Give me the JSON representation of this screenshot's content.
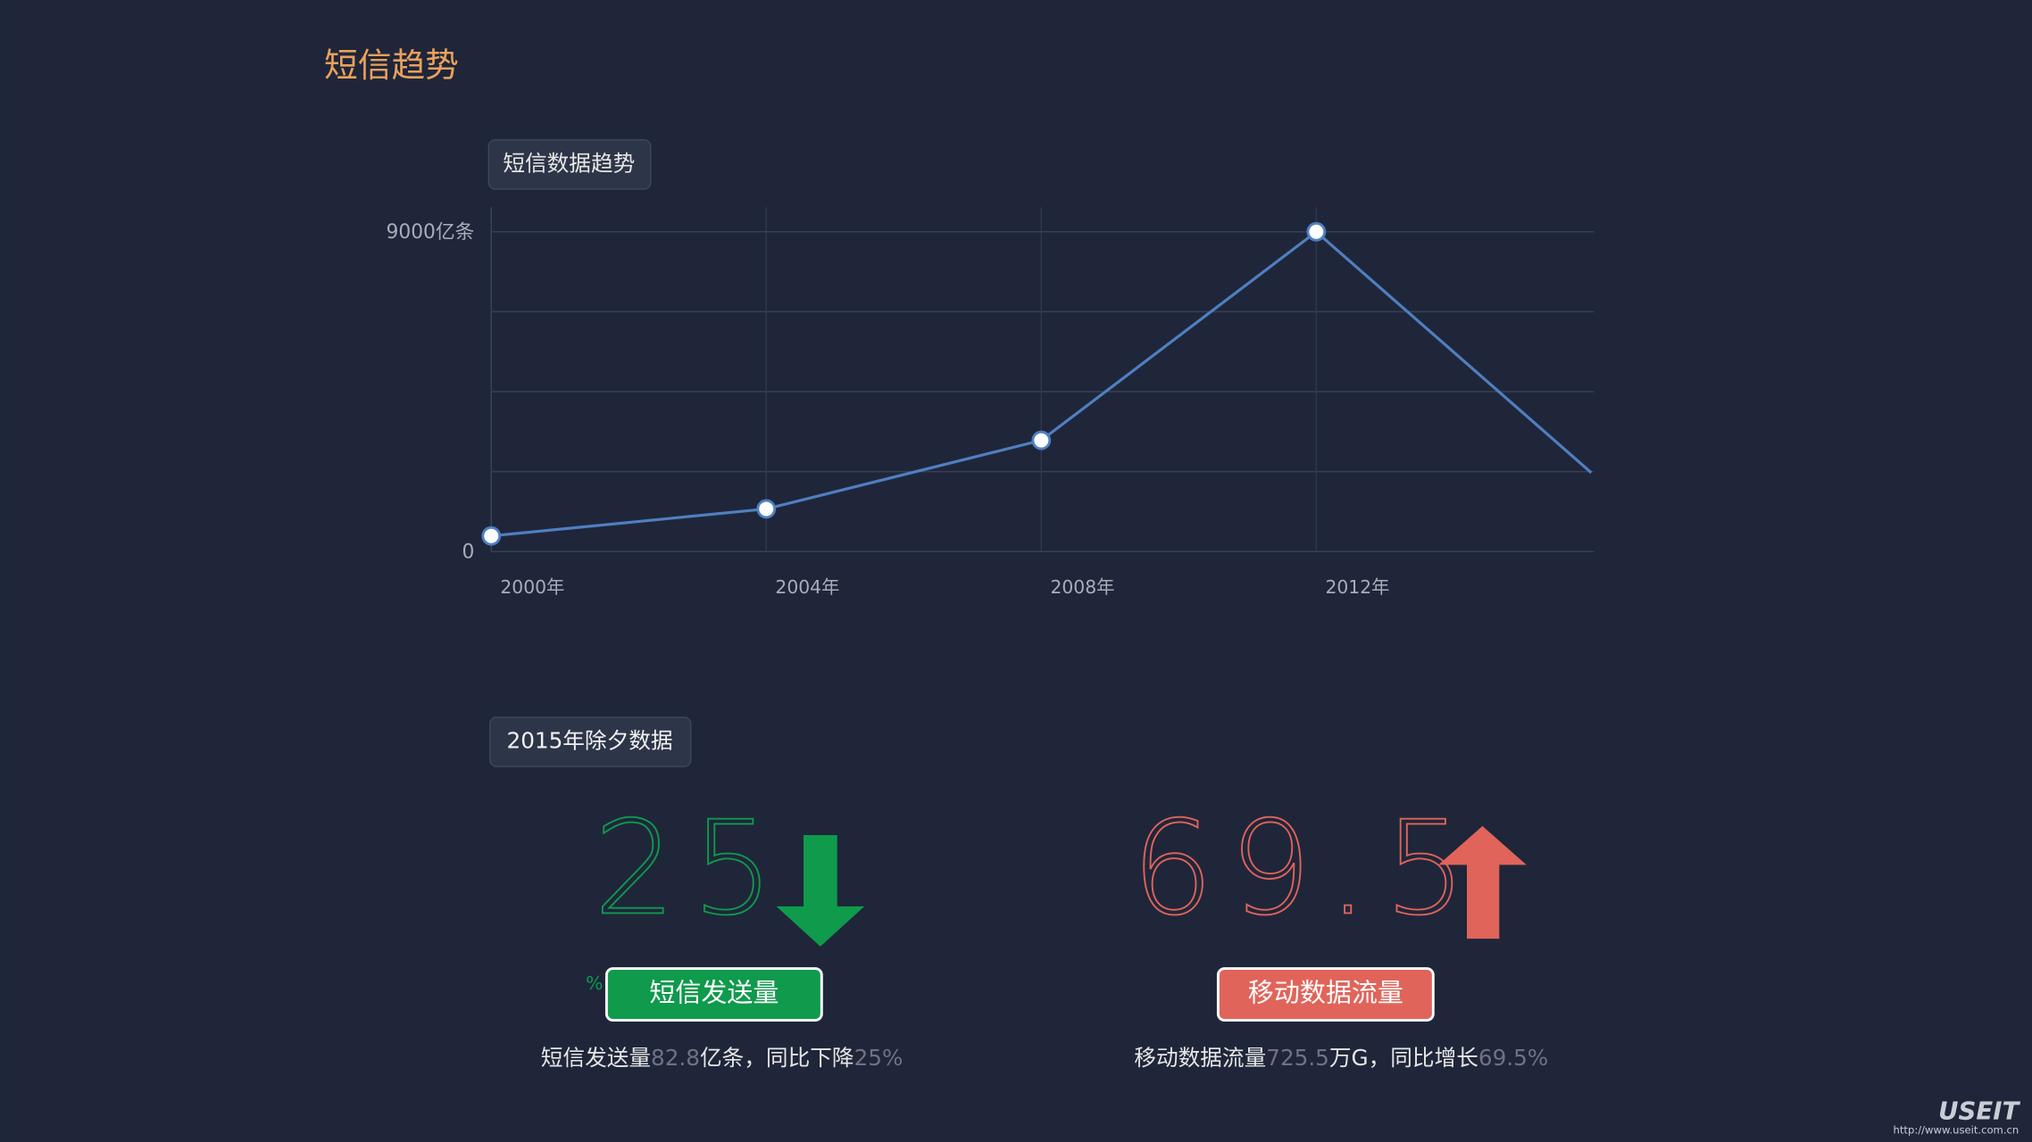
{
  "header": {
    "title": "短信趋势"
  },
  "chart_data": {
    "type": "line",
    "title": "短信数据趋势",
    "categories": [
      "2000年",
      "2004年",
      "2008年",
      "2012年",
      null
    ],
    "values": [
      440,
      1200,
      3130,
      9000,
      2220
    ],
    "color": "#4f7fc0",
    "ylim": [
      0,
      9000
    ],
    "yticks": [
      0,
      {
        "value": 9000,
        "label": "9000亿条"
      }
    ],
    "ygrid": [
      2250,
      4500,
      6750
    ],
    "grid": true
  },
  "stats": {
    "title": "2015年除夕数据",
    "items": [
      {
        "value": "25",
        "unit": "%",
        "direction": "down",
        "color": "#0f9a4c",
        "label": "短信发送量",
        "caption": [
          "短信发送量",
          "82.8",
          "亿条，同比下降",
          "25%"
        ]
      },
      {
        "value": "69.5",
        "direction": "up",
        "color": "#e0645a",
        "label": "移动数据流量",
        "caption": [
          "移动数据流量",
          "725.5",
          "万G，同比增长",
          "69.5%"
        ]
      }
    ]
  },
  "footer": {
    "logo": "USEIT",
    "url": "http://www.useit.com.cn"
  }
}
